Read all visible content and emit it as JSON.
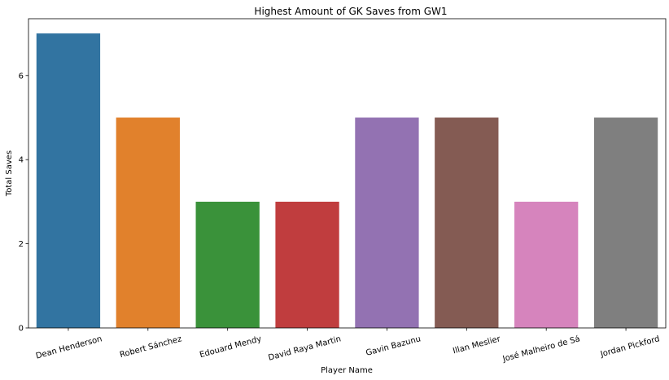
{
  "chart_data": {
    "type": "bar",
    "title": "Highest Amount of GK Saves from GW1",
    "xlabel": "Player Name",
    "ylabel": "Total Saves",
    "categories": [
      "Dean Henderson",
      "Robert Sánchez",
      "Edouard Mendy",
      "David Raya Martin",
      "Gavin Bazunu",
      "Illan Meslier",
      "José Malheiro de Sá",
      "Jordan Pickford"
    ],
    "values": [
      7,
      5,
      3,
      3,
      5,
      5,
      3,
      5
    ],
    "colors": [
      "#3274a1",
      "#e1812c",
      "#3a923a",
      "#c03d3e",
      "#9372b2",
      "#845b53",
      "#d684bd",
      "#7f7f7f"
    ],
    "ylim": [
      0,
      7.35
    ],
    "yticks": [
      0,
      2,
      4,
      6
    ],
    "grid": false,
    "legend": "none"
  }
}
